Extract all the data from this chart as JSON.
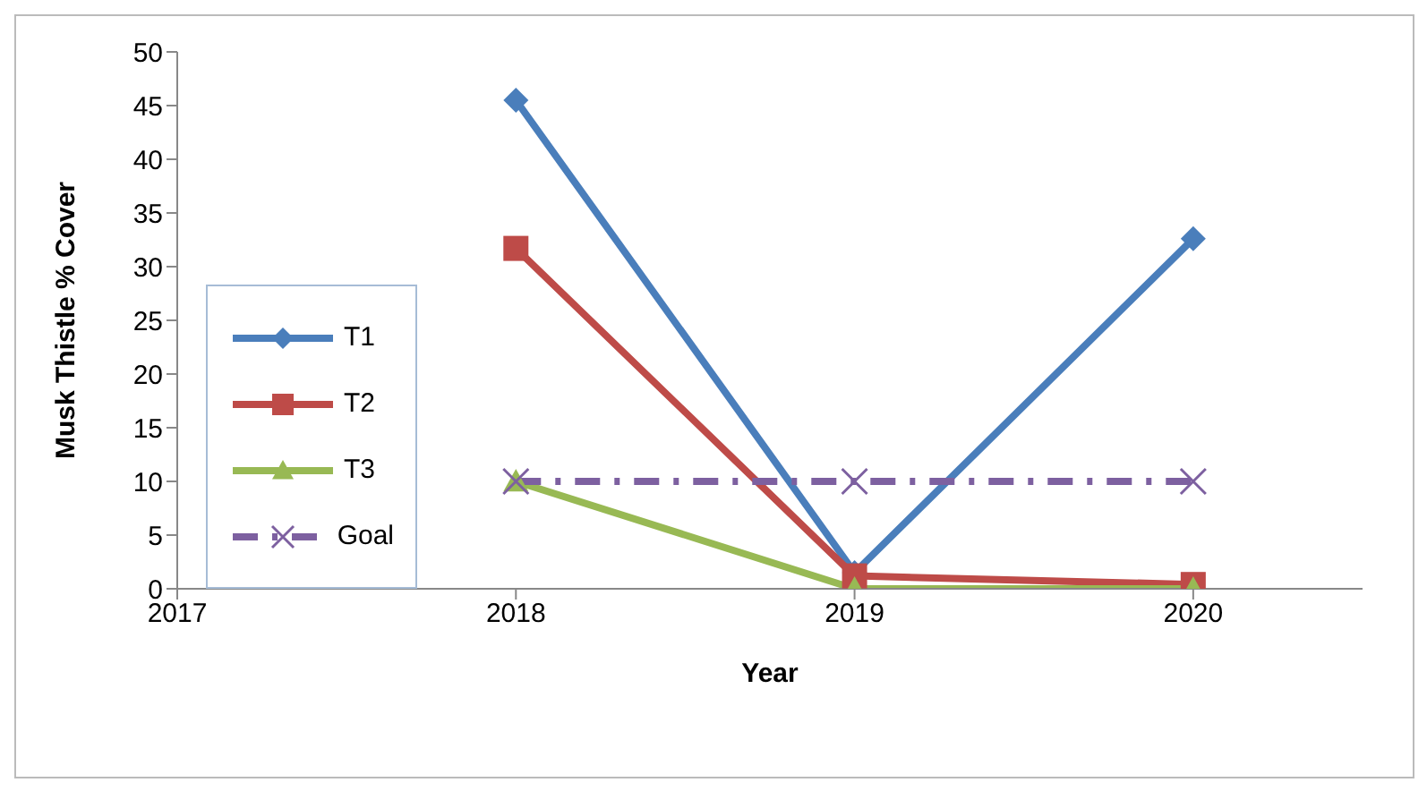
{
  "chart_data": {
    "type": "line",
    "xlabel": "Year",
    "ylabel": "Musk Thistle % Cover",
    "x": [
      2018,
      2019,
      2020
    ],
    "series": [
      {
        "name": "T1",
        "color": "#4a7ebb",
        "values": [
          45.5,
          1.5,
          32.6
        ],
        "marker": "diamond",
        "line_style": "solid"
      },
      {
        "name": "T2",
        "color": "#be4b48",
        "values": [
          31.7,
          1.2,
          0.4
        ],
        "marker": "square",
        "line_style": "solid"
      },
      {
        "name": "T3",
        "color": "#98b954",
        "values": [
          10,
          0,
          0
        ],
        "marker": "triangle",
        "line_style": "solid"
      },
      {
        "name": "Goal",
        "color": "#7d60a0",
        "values": [
          10,
          10,
          10
        ],
        "marker": "cross",
        "line_style": "dashdot"
      }
    ],
    "xlim": [
      2017,
      2020.5
    ],
    "xticks": [
      2017,
      2018,
      2019,
      2020
    ],
    "ylim": [
      0,
      50
    ],
    "yticks": [
      0,
      5,
      10,
      15,
      20,
      25,
      30,
      35,
      40,
      45,
      50
    ],
    "grid": false,
    "legend": "left"
  }
}
